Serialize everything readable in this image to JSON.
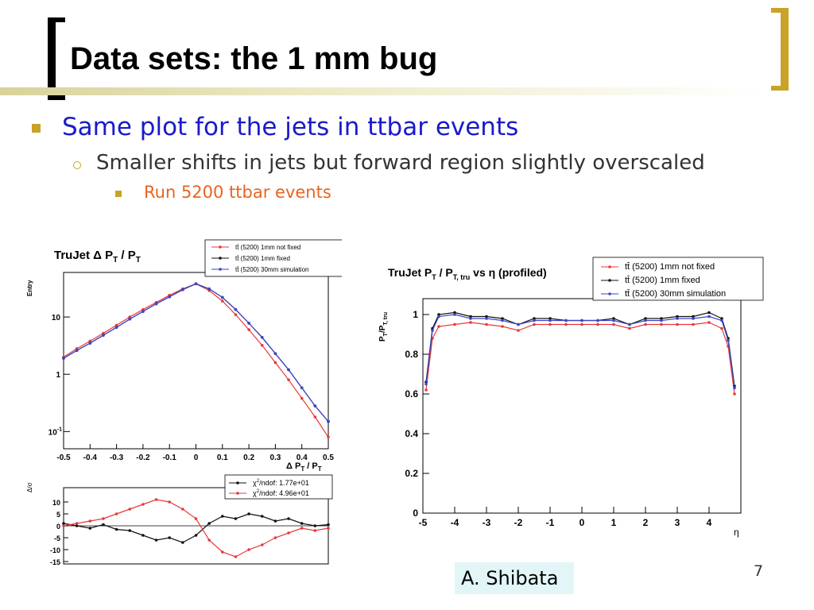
{
  "slide": {
    "title": "Data sets: the 1 mm bug",
    "page_number": "7",
    "credit": "A. Shibata",
    "colors": {
      "accent_gold": "#c9a227",
      "bullet_blue": "#1a1acc",
      "sub3_orange": "#e8641e"
    },
    "bullets": [
      {
        "level": 1,
        "text": "Same plot for the jets in ttbar events"
      },
      {
        "level": 2,
        "text": "Smaller shifts in jets but forward region slightly overscaled"
      },
      {
        "level": 3,
        "text": "Run 5200 ttbar events"
      }
    ]
  },
  "chart_data": [
    {
      "type": "line",
      "title": "TruJet Δ P_T / P_T",
      "title_parts": {
        "main": "TruJet Δ P",
        "sub1": "T",
        "mid": " / P",
        "sub2": "T"
      },
      "xlabel": "Δ P_T / P_T",
      "xlabel_parts": {
        "main": "Δ P",
        "sub1": "T",
        "mid": " / P",
        "sub2": "T"
      },
      "ylabel": "Entry",
      "yscale": "log",
      "xlim": [
        -0.5,
        0.5
      ],
      "ylim": [
        0.05,
        60
      ],
      "x_ticks": [
        "-0.5",
        "-0.4",
        "-0.3",
        "-0.2",
        "-0.1",
        "0",
        "0.1",
        "0.2",
        "0.3",
        "0.4",
        "0.5"
      ],
      "y_ticks": [
        {
          "v": 0.1,
          "label": "10",
          "sup": "-1"
        },
        {
          "v": 1,
          "label": "1",
          "sup": ""
        },
        {
          "v": 10,
          "label": "10",
          "sup": ""
        }
      ],
      "legend": [
        "tt̄ (5200) 1mm not fixed",
        "tt̄ (5200) 1mm fixed",
        "tt̄ (5200) 30mm simulation"
      ],
      "series": [
        {
          "name": "tt̄ (5200) 1mm not fixed",
          "color": "#e8383c",
          "x": [
            -0.5,
            -0.45,
            -0.4,
            -0.35,
            -0.3,
            -0.25,
            -0.2,
            -0.15,
            -0.1,
            -0.05,
            0,
            0.05,
            0.1,
            0.15,
            0.2,
            0.25,
            0.3,
            0.35,
            0.4,
            0.45,
            0.5
          ],
          "values": [
            2,
            2.8,
            3.8,
            5.2,
            7.2,
            10,
            13.5,
            18,
            24,
            31,
            38,
            29,
            19,
            11,
            6,
            3.2,
            1.6,
            0.8,
            0.38,
            0.18,
            0.08
          ]
        },
        {
          "name": "tt̄ (5200) 1mm fixed",
          "color": "#111111",
          "x": [
            -0.5,
            -0.45,
            -0.4,
            -0.35,
            -0.3,
            -0.25,
            -0.2,
            -0.15,
            -0.1,
            -0.05,
            0,
            0.05,
            0.1,
            0.15,
            0.2,
            0.25,
            0.3,
            0.35,
            0.4,
            0.45,
            0.5
          ],
          "values": [
            1.9,
            2.6,
            3.5,
            4.8,
            6.6,
            9.2,
            12.5,
            17,
            22.5,
            30,
            38,
            31,
            22,
            13.5,
            7.8,
            4.4,
            2.3,
            1.2,
            0.58,
            0.28,
            0.15
          ]
        },
        {
          "name": "tt̄ (5200) 30mm simulation",
          "color": "#3a46c8",
          "x": [
            -0.5,
            -0.45,
            -0.4,
            -0.35,
            -0.3,
            -0.25,
            -0.2,
            -0.15,
            -0.1,
            -0.05,
            0,
            0.05,
            0.1,
            0.15,
            0.2,
            0.25,
            0.3,
            0.35,
            0.4,
            0.45,
            0.5
          ],
          "values": [
            1.9,
            2.6,
            3.5,
            4.8,
            6.6,
            9.2,
            12.5,
            17,
            22.5,
            30,
            38,
            31,
            22,
            13.5,
            7.8,
            4.4,
            2.3,
            1.2,
            0.58,
            0.28,
            0.15
          ]
        }
      ]
    },
    {
      "type": "line",
      "ylabel": "Δ/σ",
      "xlim": [
        -0.5,
        0.5
      ],
      "ylim": [
        -16,
        16
      ],
      "y_ticks": [
        "10",
        "5",
        "0",
        "-5",
        "-10",
        "-15"
      ],
      "legend": [
        {
          "label": "χ²/ndof: 1.77e+01",
          "base": "χ",
          "sup": "2",
          "rest": "/ndof: 1.77e+01"
        },
        {
          "label": "χ²/ndof: 4.96e+01",
          "base": "χ",
          "sup": "2",
          "rest": "/ndof: 4.96e+01"
        }
      ],
      "series": [
        {
          "name": "χ²/ndof: 1.77e+01",
          "color": "#111111",
          "x": [
            -0.5,
            -0.45,
            -0.4,
            -0.35,
            -0.3,
            -0.25,
            -0.2,
            -0.15,
            -0.1,
            -0.05,
            0,
            0.05,
            0.1,
            0.15,
            0.2,
            0.25,
            0.3,
            0.35,
            0.4,
            0.45,
            0.5
          ],
          "values": [
            1,
            0,
            -1,
            0.5,
            -1.5,
            -2,
            -4,
            -6,
            -5,
            -7,
            -4,
            1,
            4,
            3,
            5,
            4,
            2,
            3,
            1,
            0,
            0.5
          ]
        },
        {
          "name": "χ²/ndof: 4.96e+01",
          "color": "#e8383c",
          "x": [
            -0.5,
            -0.45,
            -0.4,
            -0.35,
            -0.3,
            -0.25,
            -0.2,
            -0.15,
            -0.1,
            -0.05,
            0,
            0.05,
            0.1,
            0.15,
            0.2,
            0.25,
            0.3,
            0.35,
            0.4,
            0.45,
            0.5
          ],
          "values": [
            0,
            1,
            2,
            3,
            5,
            7,
            9,
            11,
            10,
            7,
            3,
            -6,
            -11,
            -13,
            -10,
            -8,
            -5,
            -3,
            -1,
            -2,
            -1
          ]
        }
      ]
    },
    {
      "type": "line",
      "title": "TruJet P_T / P_T, tru vs η (profiled)",
      "title_parts": {
        "a": "TruJet P",
        "b": "T",
        "c": " / P",
        "d": "T, tru",
        "e": " vs η (profiled)"
      },
      "xlabel": "η",
      "ylabel": "P_T/P_T, tru",
      "ylabel_parts": {
        "a": "P",
        "b": "T",
        "c": "/P",
        "d": "T, tru"
      },
      "xlim": [
        -5,
        5
      ],
      "ylim": [
        0,
        1.08
      ],
      "x_ticks": [
        "-5",
        "-4",
        "-3",
        "-2",
        "-1",
        "0",
        "1",
        "2",
        "3",
        "4"
      ],
      "y_ticks": [
        "0",
        "0.2",
        "0.4",
        "0.6",
        "0.8",
        "1"
      ],
      "legend": [
        "tt̄ (5200) 1mm not fixed",
        "tt̄ (5200) 1mm fixed",
        "tt̄ (5200) 30mm simulation"
      ],
      "series": [
        {
          "name": "tt̄ (5200) 1mm not fixed",
          "color": "#e8383c",
          "x": [
            -4.9,
            -4.7,
            -4.5,
            -4,
            -3.5,
            -3,
            -2.5,
            -2,
            -1.5,
            -1,
            -0.5,
            0,
            0.5,
            1,
            1.5,
            2,
            2.5,
            3,
            3.5,
            4,
            4.4,
            4.6,
            4.8
          ],
          "values": [
            0.62,
            0.88,
            0.94,
            0.95,
            0.96,
            0.95,
            0.94,
            0.92,
            0.95,
            0.95,
            0.95,
            0.95,
            0.95,
            0.95,
            0.93,
            0.95,
            0.95,
            0.95,
            0.95,
            0.96,
            0.93,
            0.84,
            0.6
          ]
        },
        {
          "name": "tt̄ (5200) 1mm fixed",
          "color": "#111111",
          "x": [
            -4.9,
            -4.7,
            -4.5,
            -4,
            -3.5,
            -3,
            -2.5,
            -2,
            -1.5,
            -1,
            -0.5,
            0,
            0.5,
            1,
            1.5,
            2,
            2.5,
            3,
            3.5,
            4,
            4.4,
            4.6,
            4.8
          ],
          "values": [
            0.66,
            0.93,
            1.0,
            1.01,
            0.99,
            0.99,
            0.98,
            0.95,
            0.98,
            0.98,
            0.97,
            0.97,
            0.97,
            0.98,
            0.95,
            0.98,
            0.98,
            0.99,
            0.99,
            1.01,
            0.98,
            0.88,
            0.64
          ]
        },
        {
          "name": "tt̄ (5200) 30mm simulation",
          "color": "#3a46c8",
          "x": [
            -4.9,
            -4.7,
            -4.5,
            -4,
            -3.5,
            -3,
            -2.5,
            -2,
            -1.5,
            -1,
            -0.5,
            0,
            0.5,
            1,
            1.5,
            2,
            2.5,
            3,
            3.5,
            4,
            4.4,
            4.6,
            4.8
          ],
          "values": [
            0.65,
            0.92,
            0.99,
            1.0,
            0.98,
            0.98,
            0.97,
            0.95,
            0.97,
            0.97,
            0.97,
            0.97,
            0.97,
            0.97,
            0.95,
            0.97,
            0.97,
            0.98,
            0.98,
            0.99,
            0.97,
            0.87,
            0.63
          ]
        }
      ]
    }
  ]
}
